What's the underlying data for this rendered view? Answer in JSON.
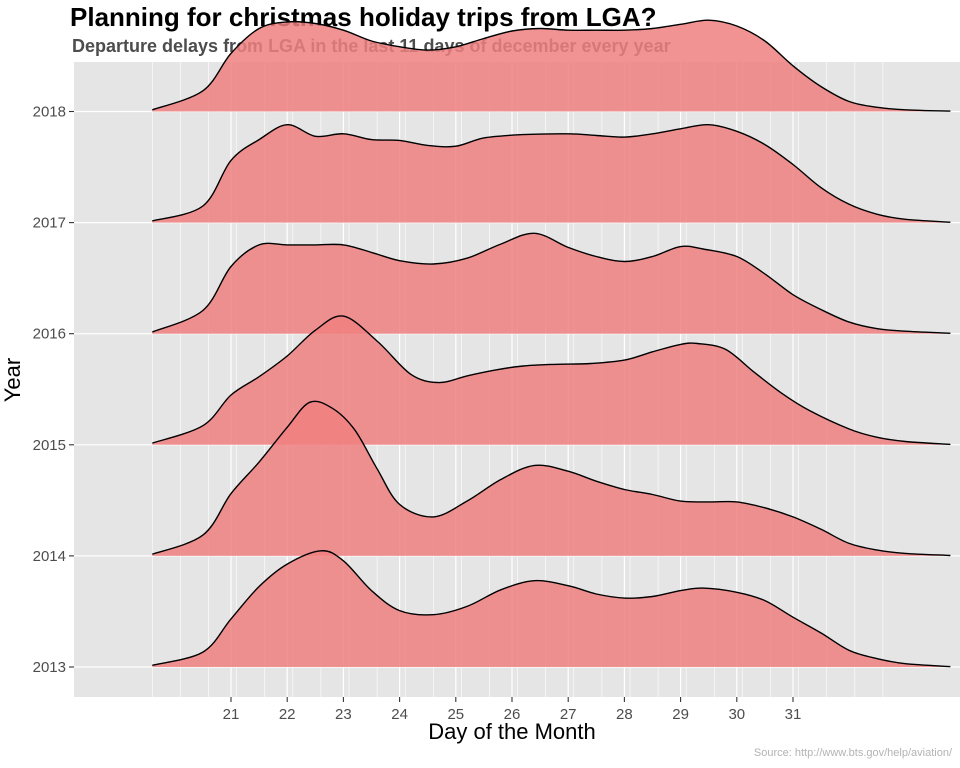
{
  "chart_data": {
    "type": "ridgeline",
    "title": "Planning for christmas holiday trips from LGA?",
    "subtitle": "Departure delays from LGA in the last 11 days of december every year",
    "caption": "Source: http://www.bts.gov/help/aviation/",
    "xlabel": "Day of the Month",
    "ylabel": "Year",
    "x_ticks": [
      21,
      22,
      23,
      24,
      25,
      26,
      27,
      28,
      29,
      30,
      31
    ],
    "x_range": [
      19.6,
      32.6
    ],
    "x_density_range": [
      19.6,
      33.8
    ],
    "y_ticks": [
      "2013",
      "2014",
      "2015",
      "2016",
      "2017",
      "2018"
    ],
    "grid": true,
    "legend": "none",
    "colors": {
      "panel_background": "#e5e5e5",
      "grid": "#ffffff",
      "fill": "#f08080",
      "fill_opacity": 0.85,
      "outline": "#000000"
    },
    "series": [
      {
        "name": "2013",
        "x": [
          19.6,
          20.5,
          21.0,
          21.5,
          22.0,
          22.6,
          23.0,
          23.5,
          24.0,
          24.6,
          25.2,
          25.8,
          26.4,
          27.0,
          27.5,
          28.0,
          28.5,
          29.0,
          29.4,
          30.0,
          30.5,
          31.0,
          31.5,
          32.0,
          32.5,
          33.0,
          33.8
        ],
        "density": [
          0.02,
          0.18,
          0.58,
          0.97,
          1.24,
          1.4,
          1.28,
          0.92,
          0.68,
          0.63,
          0.73,
          0.93,
          1.04,
          0.98,
          0.88,
          0.83,
          0.85,
          0.92,
          0.95,
          0.9,
          0.8,
          0.6,
          0.41,
          0.2,
          0.1,
          0.04,
          0.005
        ]
      },
      {
        "name": "2014",
        "x": [
          19.6,
          20.5,
          21.0,
          21.5,
          22.0,
          22.4,
          22.8,
          23.2,
          23.6,
          24.0,
          24.6,
          25.2,
          25.8,
          26.4,
          27.0,
          27.5,
          28.0,
          28.5,
          29.0,
          29.5,
          30.0,
          30.5,
          31.0,
          31.5,
          32.0,
          32.5,
          33.0,
          33.8
        ],
        "density": [
          0.02,
          0.25,
          0.75,
          1.13,
          1.55,
          1.85,
          1.78,
          1.52,
          1.05,
          0.62,
          0.47,
          0.66,
          0.92,
          1.09,
          1.02,
          0.9,
          0.8,
          0.74,
          0.66,
          0.65,
          0.65,
          0.58,
          0.47,
          0.32,
          0.15,
          0.07,
          0.03,
          0.005
        ]
      },
      {
        "name": "2015",
        "x": [
          19.6,
          20.5,
          21.0,
          21.5,
          22.0,
          22.5,
          23.0,
          23.6,
          24.2,
          24.7,
          25.2,
          25.7,
          26.2,
          26.8,
          27.4,
          28.0,
          28.5,
          29.0,
          29.3,
          29.8,
          30.3,
          30.8,
          31.3,
          32.0,
          32.5,
          33.0,
          33.8
        ],
        "density": [
          0.02,
          0.23,
          0.6,
          0.82,
          1.07,
          1.38,
          1.55,
          1.25,
          0.85,
          0.75,
          0.83,
          0.9,
          0.95,
          0.97,
          0.98,
          1.02,
          1.12,
          1.21,
          1.22,
          1.15,
          0.88,
          0.62,
          0.41,
          0.19,
          0.09,
          0.04,
          0.005
        ]
      },
      {
        "name": "2016",
        "x": [
          19.6,
          20.5,
          21.0,
          21.5,
          22.0,
          22.5,
          23.0,
          23.5,
          24.0,
          24.6,
          25.2,
          25.8,
          26.4,
          27.0,
          27.5,
          28.0,
          28.5,
          29.0,
          29.4,
          30.0,
          30.5,
          31.0,
          31.5,
          32.0,
          32.5,
          33.0,
          33.8
        ],
        "density": [
          0.02,
          0.28,
          0.81,
          1.07,
          1.07,
          1.07,
          1.07,
          0.98,
          0.88,
          0.84,
          0.91,
          1.08,
          1.21,
          1.04,
          0.93,
          0.87,
          0.93,
          1.05,
          1.02,
          0.93,
          0.72,
          0.47,
          0.29,
          0.14,
          0.06,
          0.03,
          0.005
        ]
      },
      {
        "name": "2017",
        "x": [
          19.6,
          20.5,
          21.0,
          21.5,
          22.0,
          22.5,
          23.0,
          23.5,
          24.0,
          24.5,
          25.0,
          25.5,
          26.2,
          27.0,
          27.5,
          28.0,
          28.5,
          29.0,
          29.5,
          30.0,
          30.5,
          31.0,
          31.5,
          32.0,
          32.5,
          33.0,
          33.8
        ],
        "density": [
          0.02,
          0.2,
          0.75,
          1.0,
          1.18,
          1.04,
          1.07,
          1.0,
          0.99,
          0.93,
          0.92,
          1.02,
          1.06,
          1.07,
          1.05,
          1.03,
          1.07,
          1.13,
          1.18,
          1.1,
          0.94,
          0.7,
          0.42,
          0.22,
          0.1,
          0.04,
          0.005
        ]
      },
      {
        "name": "2018",
        "x": [
          19.6,
          20.5,
          21.0,
          21.5,
          22.0,
          22.5,
          23.0,
          23.5,
          24.0,
          24.5,
          25.0,
          25.5,
          26.0,
          26.5,
          27.0,
          27.5,
          28.0,
          28.5,
          29.0,
          29.5,
          30.0,
          30.5,
          31.0,
          31.5,
          32.0,
          32.5,
          33.0,
          33.8
        ],
        "density": [
          0.02,
          0.25,
          0.7,
          1.0,
          1.08,
          1.06,
          0.98,
          0.85,
          0.78,
          0.74,
          0.78,
          0.88,
          0.97,
          1.0,
          0.98,
          0.98,
          0.98,
          1.0,
          1.05,
          1.1,
          1.03,
          0.85,
          0.55,
          0.3,
          0.12,
          0.05,
          0.02,
          0.005
        ]
      }
    ]
  }
}
